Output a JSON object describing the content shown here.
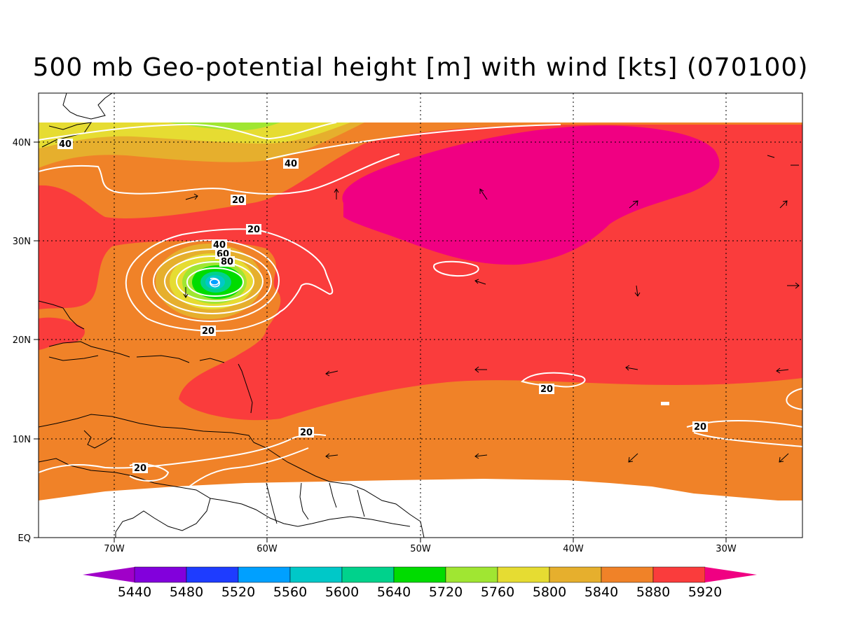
{
  "title": "500 mb Geo-potential height [m] with wind [kts] (070100)",
  "lon_ticks": [
    "70W",
    "60W",
    "50W",
    "40W",
    "30W"
  ],
  "lat_ticks": [
    "40N",
    "30N",
    "20N",
    "10N",
    "EQ"
  ],
  "colorbar": {
    "labels": [
      "5440",
      "5480",
      "5520",
      "5560",
      "5600",
      "5640",
      "5720",
      "5760",
      "5800",
      "5840",
      "5880",
      "5920"
    ],
    "colors": [
      "#a000c8",
      "#8200dc",
      "#1e3cff",
      "#00a0ff",
      "#00c8c8",
      "#00d28c",
      "#00dc00",
      "#a0e632",
      "#e6dc32",
      "#e6af2d",
      "#f08228",
      "#fa3c3c",
      "#f00082"
    ]
  },
  "height_colors": {
    "lowest": "#f00082",
    "5920": "#f00082",
    "5880": "#fa3c3c",
    "5840": "#f08228",
    "5800": "#e6af2d",
    "5760": "#e6dc32",
    "5720": "#a0e632",
    "5640": "#00dc00",
    "5600": "#00d28c",
    "5560": "#00c8c8",
    "5520": "#00a0ff"
  },
  "wind_contour_labels": [
    {
      "text": "40",
      "id": "c40-nw"
    },
    {
      "text": "40",
      "id": "c40-n"
    },
    {
      "text": "20",
      "id": "c20-a"
    },
    {
      "text": "20",
      "id": "c20-b"
    },
    {
      "text": "40",
      "id": "c40-storm"
    },
    {
      "text": "60",
      "id": "c60-storm"
    },
    {
      "text": "80",
      "id": "c80-storm"
    },
    {
      "text": "20",
      "id": "c20-storm"
    },
    {
      "text": "20",
      "id": "c20-east"
    },
    {
      "text": "20",
      "id": "c20-far-east"
    },
    {
      "text": "20",
      "id": "c20-south"
    },
    {
      "text": "20",
      "id": "c20-sw"
    }
  ]
}
